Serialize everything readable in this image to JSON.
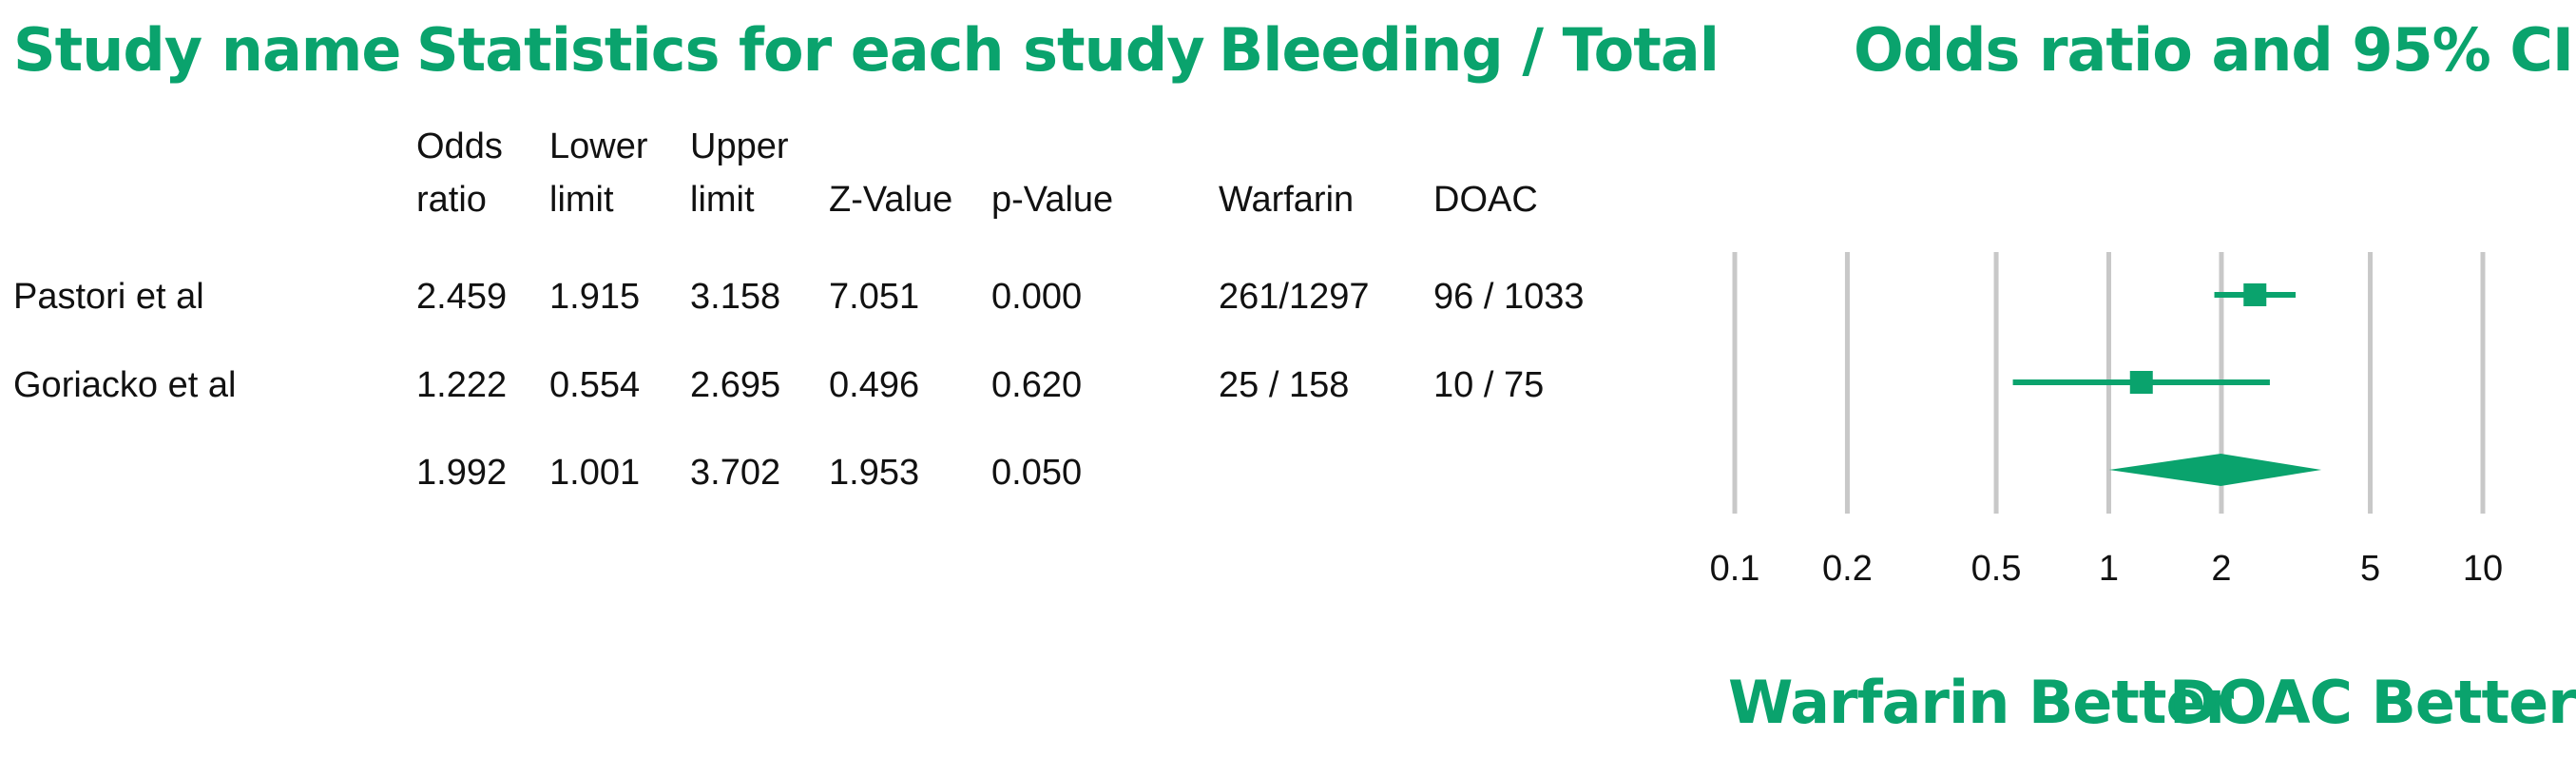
{
  "headers": {
    "study_name": "Study name",
    "statistics": "Statistics for each study",
    "bleeding": "Bleeding / Total",
    "odds_ratio_ci": "Odds ratio and 95% CI"
  },
  "subheaders": {
    "odds_ratio_1": "Odds",
    "odds_ratio_2": "ratio",
    "lower_1": "Lower",
    "lower_2": "limit",
    "upper_1": "Upper",
    "upper_2": "limit",
    "z_value": "Z-Value",
    "p_value": "p-Value",
    "warfarin": "Warfarin",
    "doac": "DOAC"
  },
  "rows": [
    {
      "study": "Pastori et al",
      "or": "2.459",
      "lower": "1.915",
      "upper": "3.158",
      "z": "7.051",
      "p": "0.000",
      "warfarin": "261/1297",
      "doac": "96 / 1033"
    },
    {
      "study": "Goriacko et al",
      "or": "1.222",
      "lower": "0.554",
      "upper": "2.695",
      "z": "0.496",
      "p": "0.620",
      "warfarin": "25 / 158",
      "doac": "10 / 75"
    },
    {
      "study": "",
      "or": "1.992",
      "lower": "1.001",
      "upper": "3.702",
      "z": "1.953",
      "p": "0.050",
      "warfarin": "",
      "doac": ""
    }
  ],
  "footer": {
    "left": "Warfarin Better",
    "right": "DOAC Better"
  },
  "colors": {
    "accent": "#0aa36d",
    "gridline": "#c8c8c8"
  },
  "chart_data": {
    "type": "forest",
    "scale": "log",
    "xlim": [
      0.1,
      10
    ],
    "x_ticks": [
      0.1,
      0.2,
      0.5,
      1,
      2,
      5,
      10
    ],
    "x_tick_labels": [
      "0.1",
      "0.2",
      "0.5",
      "1",
      "2",
      "5",
      "10"
    ],
    "grid": true,
    "points": [
      {
        "or": 2.459,
        "lower": 1.915,
        "upper": 3.158,
        "shape": "square"
      },
      {
        "or": 1.222,
        "lower": 0.554,
        "upper": 2.695,
        "shape": "square"
      },
      {
        "or": 1.992,
        "lower": 1.001,
        "upper": 3.702,
        "shape": "diamond"
      }
    ]
  }
}
